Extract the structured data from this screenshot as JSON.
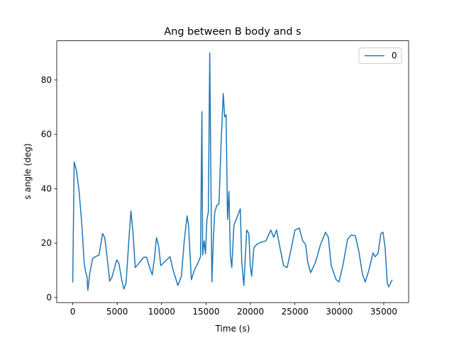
{
  "chart_data": {
    "type": "line",
    "title": "Ang between B body and s",
    "x_label": "Time (s)",
    "y_label": "s angle (deg)",
    "x": [
      0,
      160,
      400,
      720,
      1040,
      1280,
      1440,
      1600,
      1700,
      1920,
      2240,
      2560,
      2960,
      3360,
      3600,
      3840,
      4160,
      4400,
      4950,
      5200,
      5510,
      5750,
      6000,
      6310,
      6550,
      6790,
      7030,
      7430,
      7990,
      8310,
      8710,
      8950,
      9190,
      9430,
      9670,
      9910,
      10310,
      10950,
      11270,
      11830,
      12230,
      12550,
      12870,
      13030,
      13350,
      13670,
      14140,
      14380,
      14540,
      14620,
      14780,
      14940,
      15100,
      15260,
      15420,
      15660,
      15820,
      15980,
      16220,
      16460,
      16700,
      16940,
      17100,
      17260,
      17420,
      17580,
      17740,
      17900,
      18140,
      18460,
      18860,
      19020,
      19260,
      19580,
      19820,
      19980,
      20140,
      20380,
      20700,
      21170,
      21740,
      22300,
      22620,
      22940,
      23330,
      23730,
      24130,
      24530,
      25010,
      25490,
      25890,
      26210,
      26450,
      26770,
      27330,
      27890,
      28450,
      28770,
      29090,
      29650,
      29970,
      30450,
      30930,
      31330,
      31800,
      32200,
      32600,
      32920,
      33320,
      33800,
      34040,
      34360,
      34680,
      34920,
      35160,
      35400,
      35560,
      35960
    ],
    "series": [
      {
        "name": "0",
        "color": "#1f77b4",
        "values": [
          5.5,
          49.8,
          47,
          39,
          26,
          13,
          9.4,
          7.8,
          2.6,
          9,
          14.3,
          15,
          15.6,
          23.5,
          22,
          15.6,
          6,
          7.3,
          13.8,
          12.5,
          6.5,
          3.1,
          5.2,
          20.8,
          31.8,
          23.5,
          11,
          12.5,
          14.8,
          14.8,
          10.4,
          8.3,
          14.3,
          22,
          18.8,
          11.7,
          13,
          15,
          10.4,
          4.4,
          7.8,
          20.8,
          30,
          26.6,
          6.5,
          9.9,
          13,
          15,
          68.3,
          15.6,
          20.8,
          16,
          28.7,
          31.3,
          89.9,
          5.7,
          20.8,
          31.3,
          33.9,
          34.4,
          57.3,
          75,
          66.4,
          67.2,
          28.7,
          39,
          15.6,
          11,
          26.6,
          29.2,
          32.6,
          13,
          4.4,
          24.8,
          23.5,
          11.7,
          7.8,
          18.2,
          19.5,
          20.3,
          20.8,
          24.8,
          22.1,
          24.8,
          18.2,
          11.7,
          11,
          17,
          24.8,
          25.5,
          20.8,
          19.5,
          13,
          9.1,
          13,
          19.5,
          24,
          22.1,
          11.7,
          6.5,
          5.7,
          12.5,
          21.4,
          22.9,
          22.7,
          17,
          8.6,
          5.7,
          9.9,
          16.4,
          15,
          16.2,
          23.5,
          24,
          18.2,
          5.2,
          3.9,
          6.5
        ]
      }
    ],
    "xlim": [
      -1800,
      37800
    ],
    "ylim": [
      -1.9,
      94.4
    ],
    "xticks": [
      0,
      5000,
      10000,
      15000,
      20000,
      25000,
      30000,
      35000
    ],
    "yticks": [
      0,
      20,
      40,
      60,
      80
    ],
    "legend": "upper right",
    "grid": false
  }
}
